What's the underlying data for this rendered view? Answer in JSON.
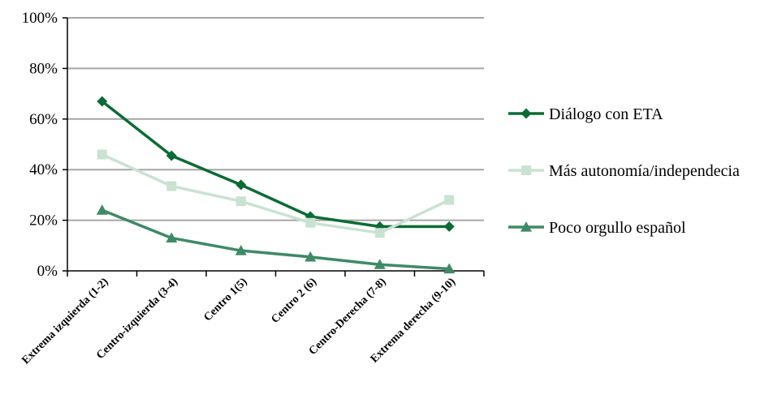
{
  "chart_data": {
    "type": "line",
    "categories": [
      "Extrema izquierda (1-2)",
      "Centro-izquierda (3-4)",
      "Centro 1(5)",
      "Centro 2 (6)",
      "Centro-Derecha (7-8)",
      "Extrema derecha (9-10)"
    ],
    "y_ticks": [
      "0%",
      "20%",
      "40%",
      "60%",
      "80%",
      "100%"
    ],
    "ylim": [
      0,
      100
    ],
    "grid": true,
    "legend_position": "right",
    "series": [
      {
        "name": "Diálogo con ETA",
        "values": [
          67,
          45.5,
          34,
          21.5,
          17.5,
          17.5
        ],
        "color": "#0b6b34",
        "marker": "diamond"
      },
      {
        "name": "Más autonomía/independecia",
        "values": [
          46,
          33.5,
          27.5,
          19,
          15,
          28
        ],
        "color": "#c9e2d2",
        "marker": "square"
      },
      {
        "name": "Poco orgullo español",
        "values": [
          24,
          13,
          8,
          5.5,
          2.5,
          0.8
        ],
        "color": "#3e8a66",
        "marker": "triangle"
      }
    ]
  }
}
